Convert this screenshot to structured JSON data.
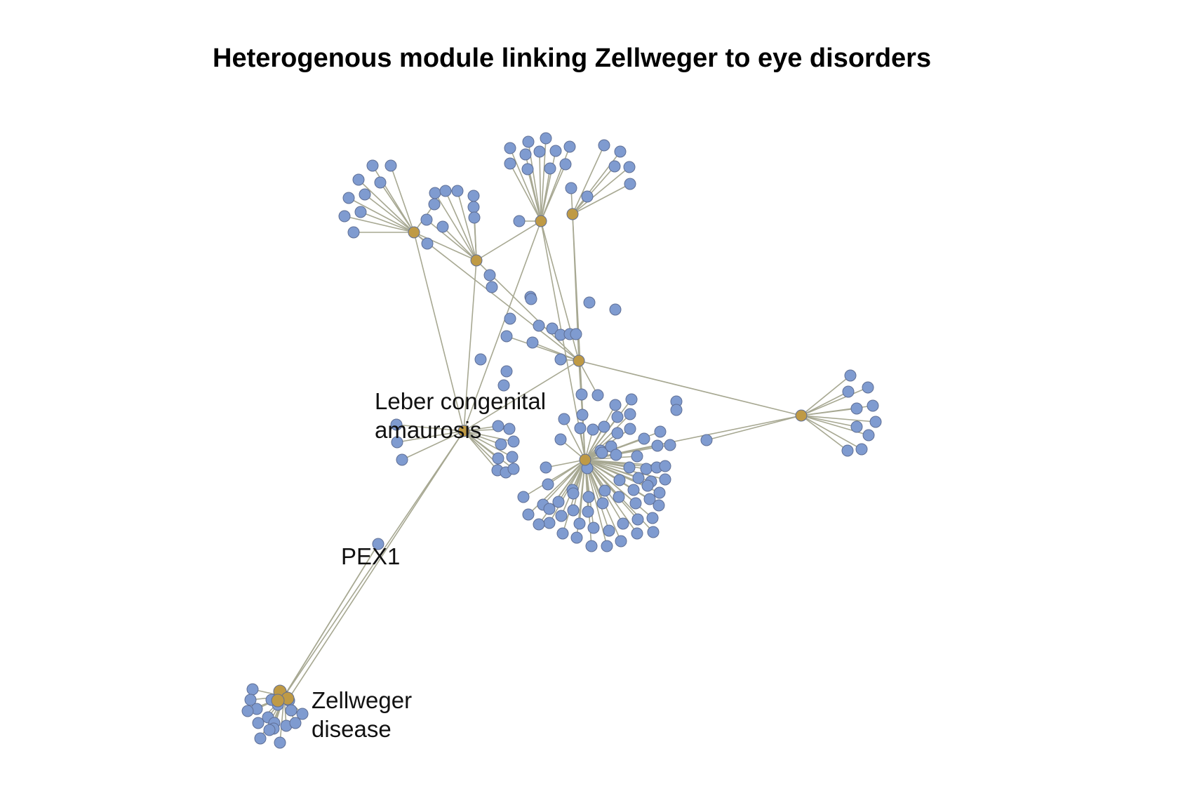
{
  "title": "Heterogenous module linking Zellweger to eye disorders",
  "labels": {
    "leber_line1": "Leber congenital",
    "leber_line2": "amaurosis",
    "pex1": "PEX1",
    "zellweger_line1": "Zellweger",
    "zellweger_line2": "disease"
  },
  "colors": {
    "disease_node": "#bf9a45",
    "gene_node": "#7f9bd0",
    "edge": "#a7a892",
    "node_stroke": "#5f6f95"
  }
}
